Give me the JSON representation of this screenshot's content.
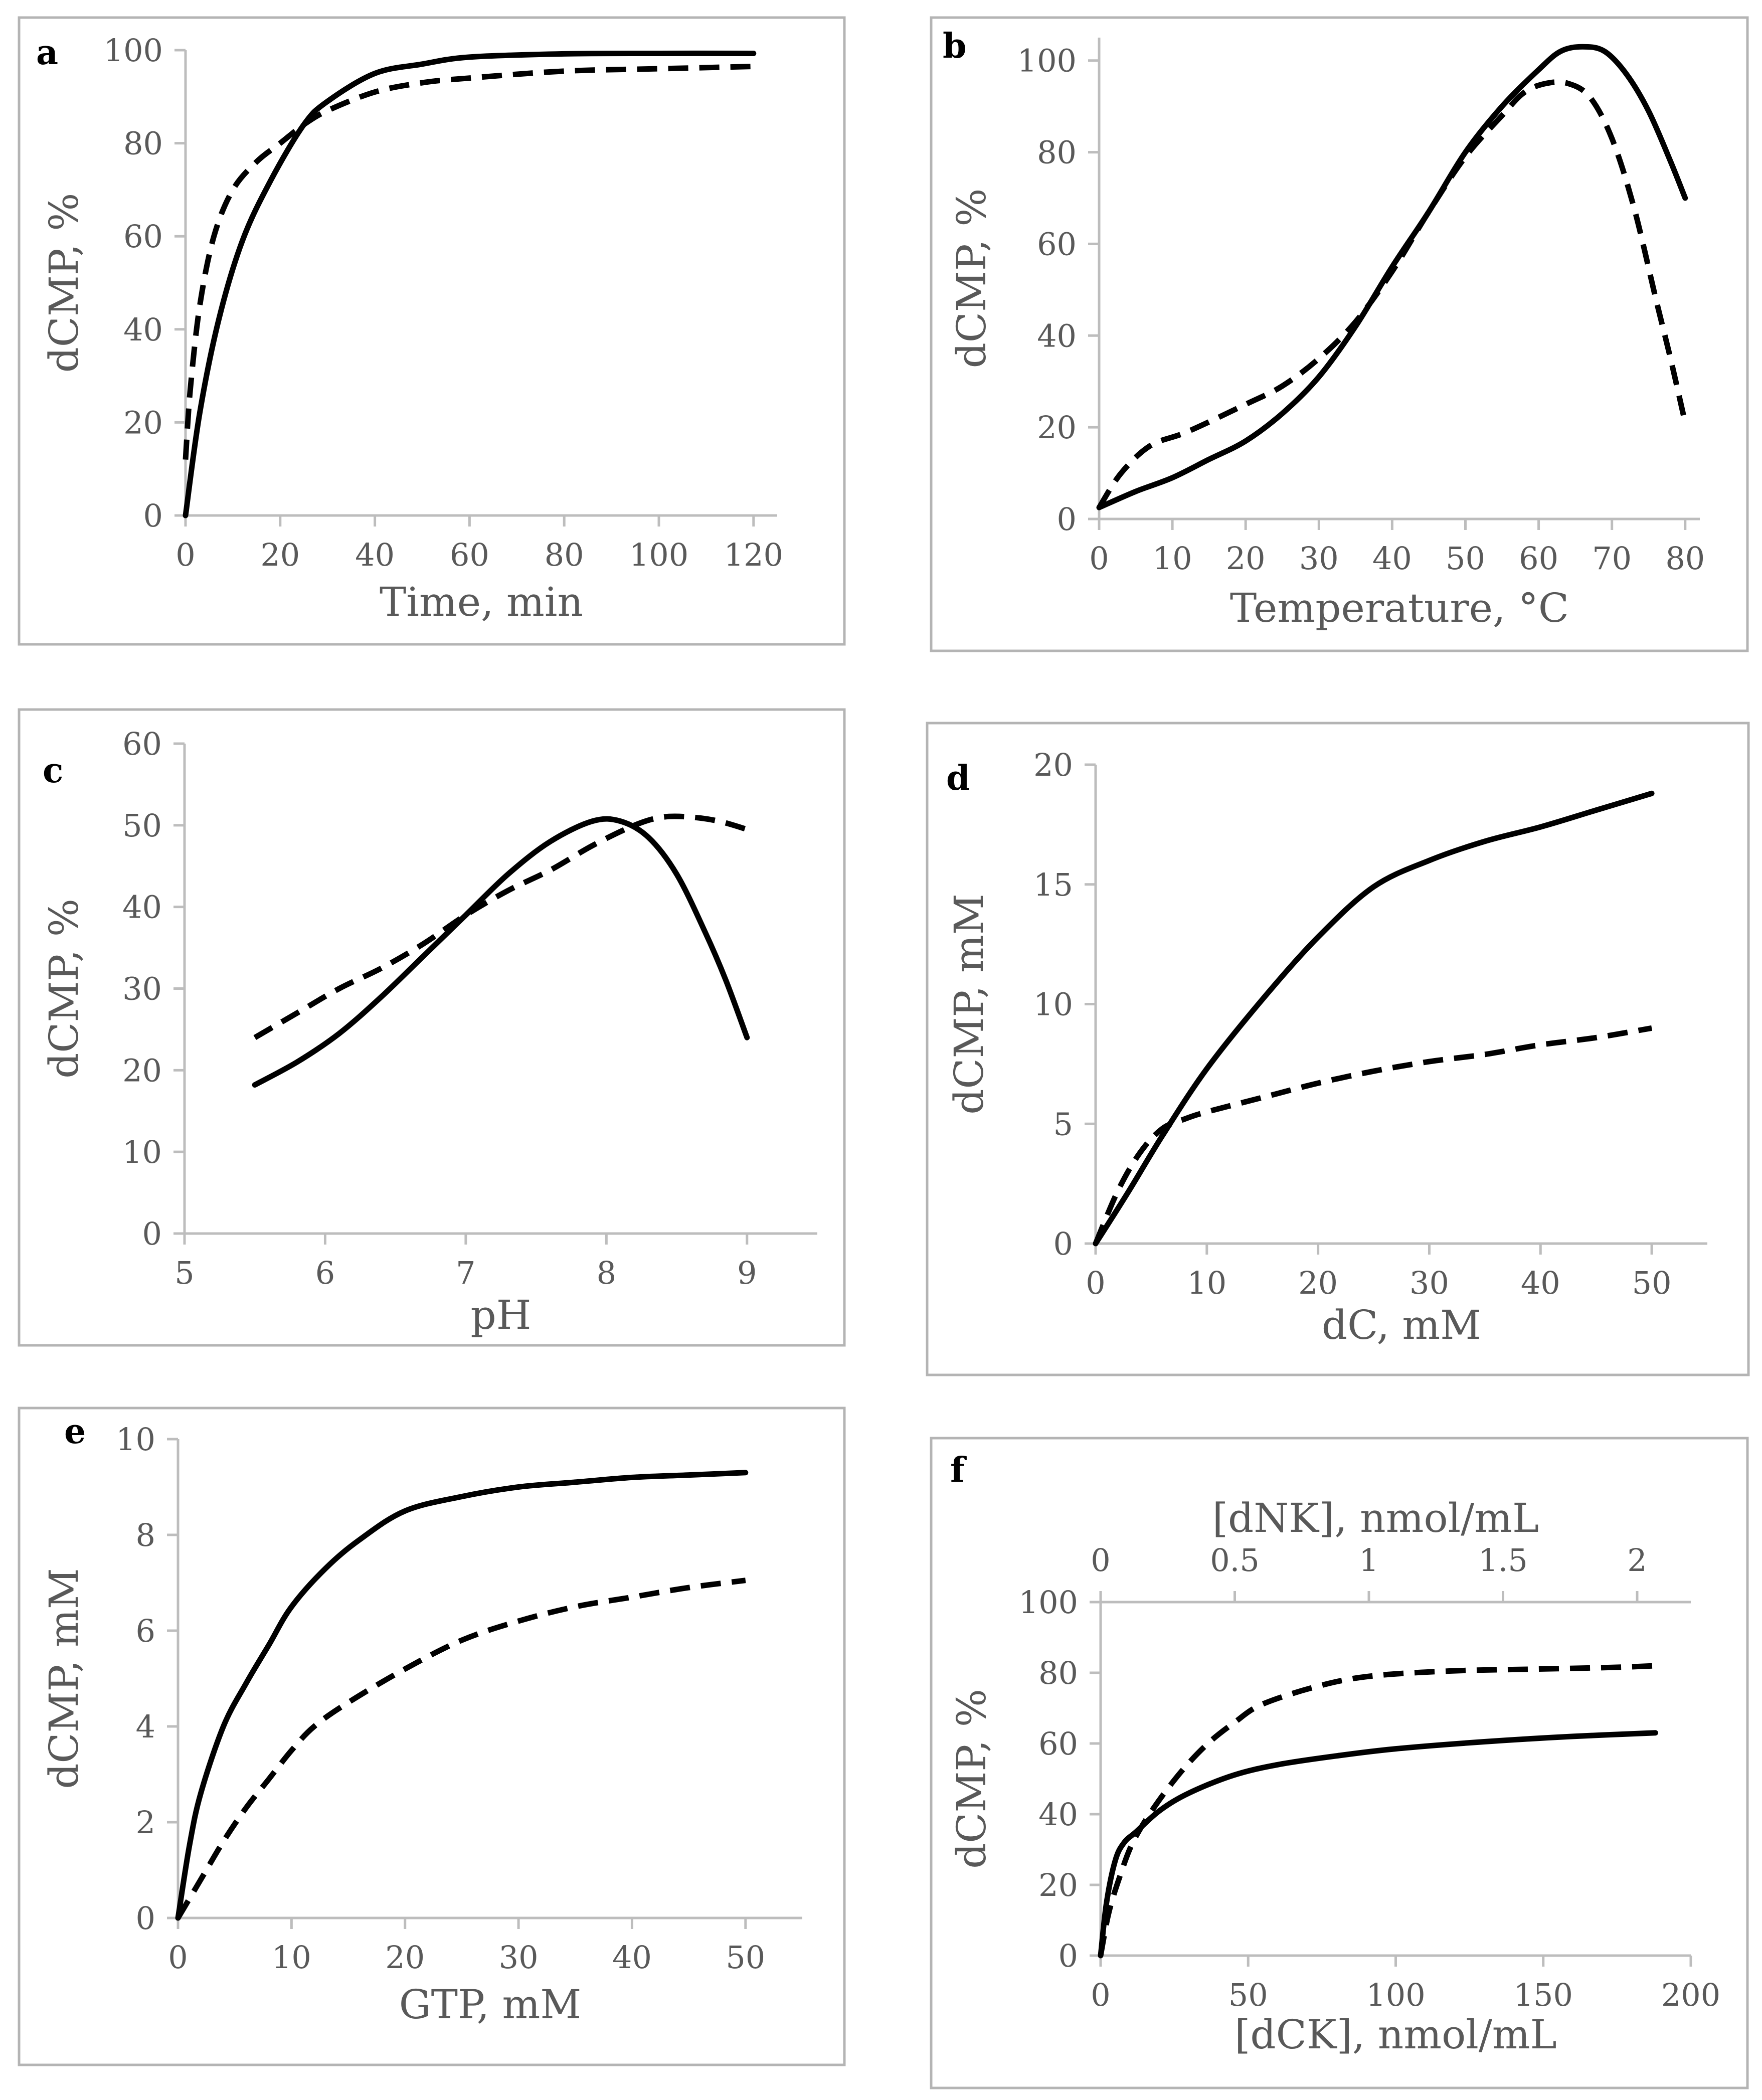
{
  "chart_data": [
    {
      "id": "a",
      "type": "line",
      "panel_label": "a",
      "xlabel": "Time, min",
      "ylabel": "dCMP, %",
      "xlim": [
        0,
        125
      ],
      "ylim": [
        0,
        100
      ],
      "xticks": [
        0,
        20,
        40,
        60,
        80,
        100,
        120
      ],
      "yticks": [
        0,
        20,
        40,
        60,
        80,
        100
      ],
      "series": [
        {
          "style": "solid",
          "x": [
            0,
            3,
            7,
            12,
            18,
            25,
            30,
            40,
            50,
            60,
            80,
            100,
            120
          ],
          "y": [
            0,
            22,
            42,
            59,
            72,
            84,
            89,
            95,
            97,
            98.5,
            99.2,
            99.3,
            99.3
          ]
        },
        {
          "style": "dashed",
          "x": [
            0,
            1,
            3,
            6,
            10,
            15,
            20,
            25,
            30,
            40,
            50,
            60,
            80,
            100,
            120
          ],
          "y": [
            12,
            27,
            45,
            60,
            70,
            76,
            80,
            84,
            87,
            91,
            93,
            94,
            95.5,
            96,
            96.5
          ]
        }
      ]
    },
    {
      "id": "b",
      "type": "line",
      "panel_label": "b",
      "xlabel": "Temperature, °C",
      "ylabel": "dCMP, %",
      "xlim": [
        0,
        82
      ],
      "ylim": [
        0,
        105
      ],
      "xticks": [
        0,
        10,
        20,
        30,
        40,
        50,
        60,
        70,
        80
      ],
      "yticks": [
        0,
        20,
        40,
        60,
        80,
        100
      ],
      "series": [
        {
          "style": "solid",
          "x": [
            0,
            5,
            10,
            15,
            20,
            25,
            30,
            35,
            40,
            45,
            50,
            55,
            60,
            63,
            66,
            69,
            72,
            75,
            78,
            80
          ],
          "y": [
            2.5,
            6,
            9,
            13,
            17,
            23,
            31,
            42,
            55,
            67,
            80,
            90,
            98,
            102,
            103,
            102,
            97,
            89,
            78,
            70
          ]
        },
        {
          "style": "dashed",
          "x": [
            0,
            3,
            7,
            12,
            20,
            25,
            30,
            35,
            40,
            45,
            50,
            55,
            58,
            61,
            64,
            67,
            70,
            73,
            76,
            78,
            80
          ],
          "y": [
            2.5,
            10,
            16,
            19,
            25,
            29,
            35,
            43,
            54,
            67,
            79,
            88,
            93,
            95,
            95,
            92,
            83,
            68,
            48,
            35,
            21
          ]
        }
      ]
    },
    {
      "id": "c",
      "type": "line",
      "panel_label": "c",
      "xlabel": "pH",
      "ylabel": "dCMP, %",
      "xlim": [
        5,
        9.5
      ],
      "ylim": [
        0,
        60
      ],
      "xticks": [
        5,
        6,
        7,
        8,
        9
      ],
      "yticks": [
        0,
        10,
        20,
        30,
        40,
        50,
        60
      ],
      "series": [
        {
          "style": "solid",
          "x": [
            5.5,
            5.8,
            6.1,
            6.4,
            6.7,
            7.0,
            7.3,
            7.6,
            7.9,
            8.1,
            8.3,
            8.5,
            8.7,
            8.85,
            9.0
          ],
          "y": [
            18.2,
            21,
            24.5,
            29,
            34,
            39,
            44,
            48,
            50.5,
            50.5,
            48.5,
            44,
            37,
            31,
            24
          ]
        },
        {
          "style": "dashed",
          "x": [
            5.5,
            5.8,
            6.1,
            6.4,
            6.7,
            7.0,
            7.3,
            7.6,
            7.9,
            8.2,
            8.4,
            8.6,
            8.8,
            9.0
          ],
          "y": [
            24,
            27,
            30,
            32.5,
            35.5,
            39,
            42,
            44.5,
            47.5,
            50,
            51,
            51,
            50.5,
            49.5
          ]
        }
      ]
    },
    {
      "id": "d",
      "type": "line",
      "panel_label": "d",
      "xlabel": "dC, mM",
      "ylabel": "dCMP, mM",
      "xlim": [
        0,
        55
      ],
      "ylim": [
        0,
        20
      ],
      "xticks": [
        0,
        10,
        20,
        30,
        40,
        50
      ],
      "yticks": [
        0,
        5,
        10,
        15,
        20
      ],
      "series": [
        {
          "style": "solid",
          "x": [
            0,
            3,
            6,
            10,
            15,
            20,
            25,
            30,
            35,
            40,
            45,
            50
          ],
          "y": [
            0,
            2.2,
            4.5,
            7.3,
            10.2,
            12.8,
            14.9,
            16,
            16.8,
            17.4,
            18.1,
            18.8
          ]
        },
        {
          "style": "dashed",
          "x": [
            0,
            2,
            4,
            6,
            8,
            10,
            15,
            20,
            25,
            30,
            35,
            40,
            45,
            50
          ],
          "y": [
            0,
            2.2,
            3.8,
            4.8,
            5.2,
            5.5,
            6.1,
            6.7,
            7.2,
            7.6,
            7.9,
            8.3,
            8.6,
            9.0
          ]
        }
      ]
    },
    {
      "id": "e",
      "type": "line",
      "panel_label": "e",
      "xlabel": "GTP, mM",
      "ylabel": "dCMP, mM",
      "xlim": [
        0,
        55
      ],
      "ylim": [
        0,
        10
      ],
      "xticks": [
        0,
        10,
        20,
        30,
        40,
        50
      ],
      "yticks": [
        0,
        2,
        4,
        6,
        8,
        10
      ],
      "series": [
        {
          "style": "solid",
          "x": [
            0,
            1,
            2,
            4,
            6,
            8,
            10,
            13,
            16,
            20,
            25,
            30,
            35,
            40,
            45,
            50
          ],
          "y": [
            0,
            1.5,
            2.6,
            4.0,
            4.9,
            5.7,
            6.5,
            7.3,
            7.9,
            8.5,
            8.8,
            9.0,
            9.1,
            9.2,
            9.25,
            9.3
          ]
        },
        {
          "style": "dashed",
          "x": [
            0,
            2,
            4,
            6,
            8,
            10,
            12,
            15,
            20,
            25,
            30,
            35,
            40,
            45,
            50
          ],
          "y": [
            0,
            0.8,
            1.6,
            2.3,
            2.9,
            3.5,
            4.0,
            4.5,
            5.2,
            5.8,
            6.2,
            6.5,
            6.7,
            6.9,
            7.05
          ]
        }
      ]
    },
    {
      "id": "f",
      "type": "line",
      "panel_label": "f",
      "xlabel": "[dCK], nmol/mL",
      "ylabel": "dCMP, %",
      "x2label": "[dNK], nmol/mL",
      "xlim": [
        0,
        200
      ],
      "ylim": [
        0,
        100
      ],
      "x2lim": [
        0,
        2.2
      ],
      "xticks": [
        0,
        50,
        100,
        150,
        200
      ],
      "x2ticks": [
        0,
        0.5,
        1,
        1.5,
        2
      ],
      "x2tick_labels": [
        "0",
        "0.5",
        "1",
        "1.5",
        "2"
      ],
      "yticks": [
        0,
        20,
        40,
        60,
        80,
        100
      ],
      "series": [
        {
          "style": "solid",
          "axis": "dCK",
          "x": [
            0,
            2,
            5,
            8,
            12,
            20,
            30,
            45,
            60,
            80,
            100,
            130,
            160,
            188
          ],
          "y": [
            0,
            15,
            27,
            32,
            35,
            41,
            46,
            51,
            54,
            56.5,
            58.5,
            60.5,
            62,
            63
          ]
        },
        {
          "style": "dashed",
          "axis": "dNK",
          "x": [
            0,
            0.03,
            0.07,
            0.12,
            0.2,
            0.3,
            0.4,
            0.5,
            0.6,
            0.8,
            1.0,
            1.3,
            1.6,
            1.9,
            2.07
          ],
          "y": [
            0,
            12,
            22,
            32,
            42,
            52,
            60,
            66,
            71,
            76,
            79,
            80.5,
            81,
            81.5,
            82
          ]
        }
      ]
    }
  ]
}
